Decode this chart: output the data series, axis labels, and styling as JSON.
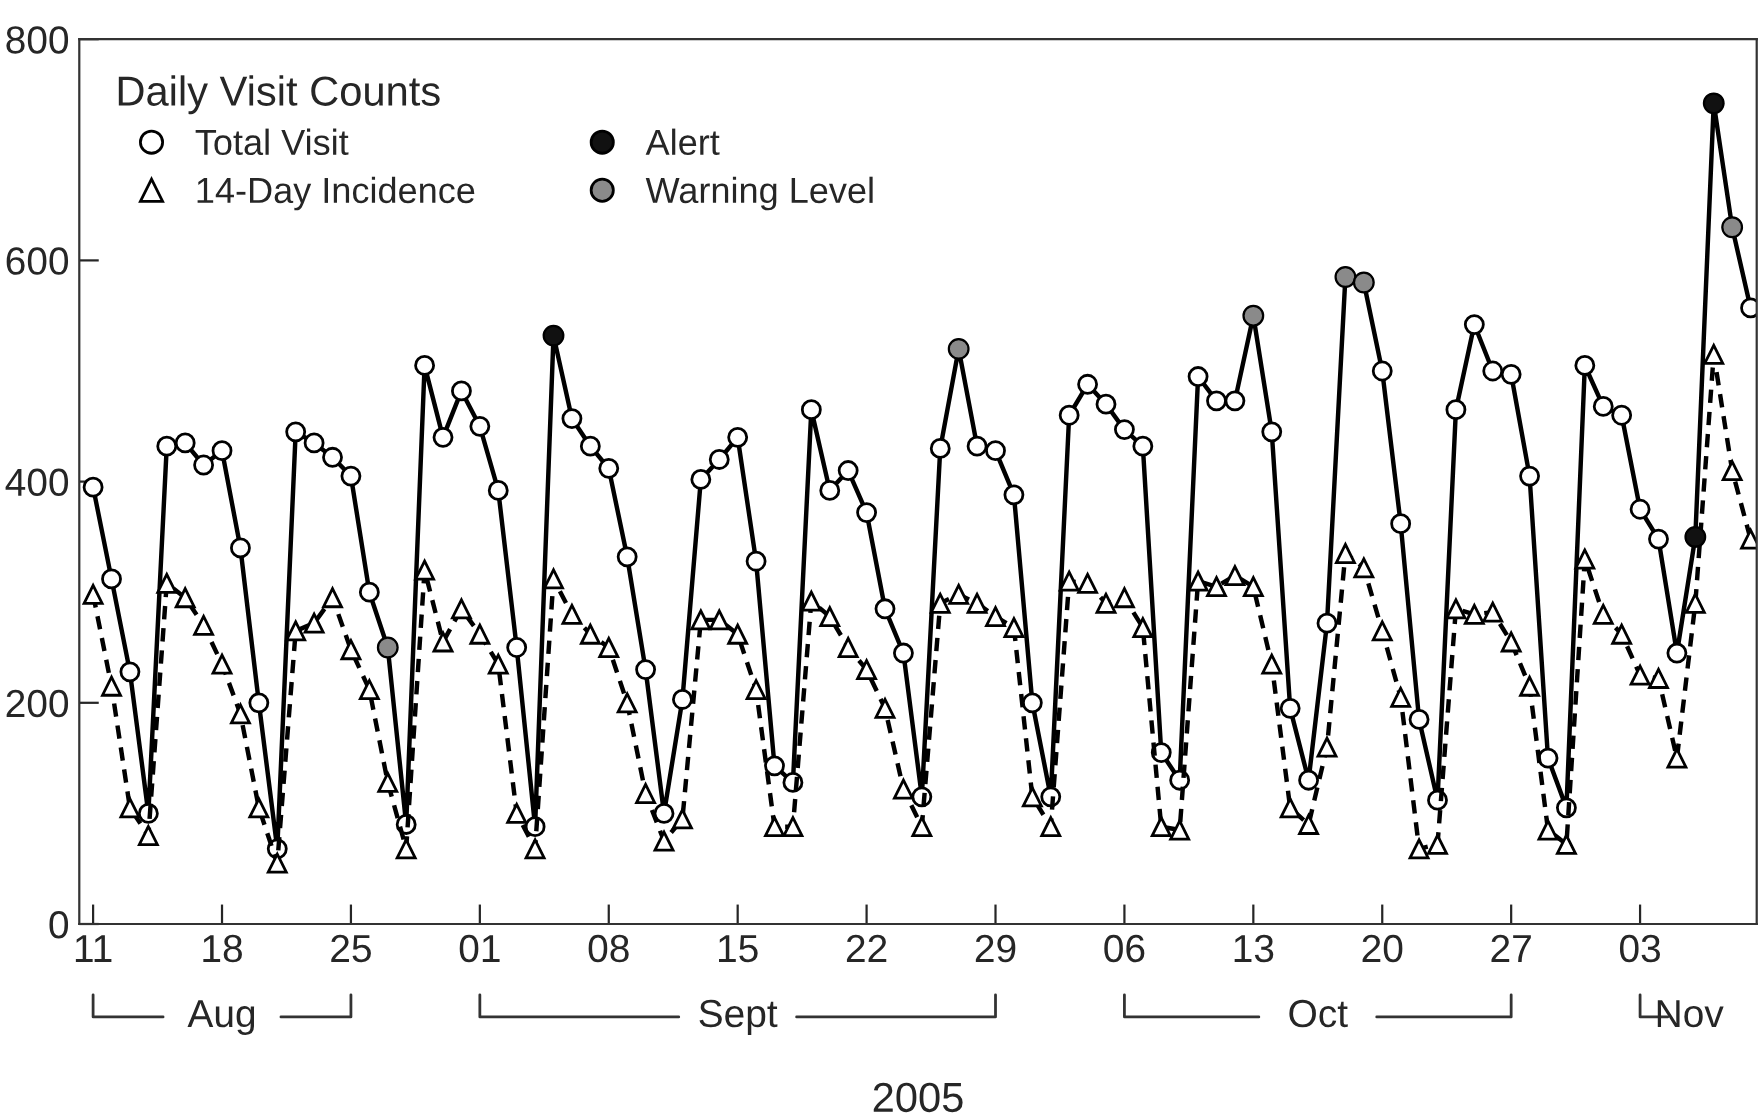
{
  "chart_data": {
    "type": "line",
    "xlabel": "2005",
    "legend_title": "Daily Visit Counts",
    "legend": "top left",
    "grid": false,
    "x": [
      "2005-08-11",
      "2005-08-12",
      "2005-08-13",
      "2005-08-14",
      "2005-08-15",
      "2005-08-16",
      "2005-08-17",
      "2005-08-18",
      "2005-08-19",
      "2005-08-20",
      "2005-08-21",
      "2005-08-22",
      "2005-08-23",
      "2005-08-24",
      "2005-08-25",
      "2005-08-26",
      "2005-08-27",
      "2005-08-28",
      "2005-08-29",
      "2005-08-30",
      "2005-08-31",
      "2005-09-01",
      "2005-09-02",
      "2005-09-03",
      "2005-09-04",
      "2005-09-05",
      "2005-09-06",
      "2005-09-07",
      "2005-09-08",
      "2005-09-09",
      "2005-09-10",
      "2005-09-11",
      "2005-09-12",
      "2005-09-13",
      "2005-09-14",
      "2005-09-15",
      "2005-09-16",
      "2005-09-17",
      "2005-09-18",
      "2005-09-19",
      "2005-09-20",
      "2005-09-21",
      "2005-09-22",
      "2005-09-23",
      "2005-09-24",
      "2005-09-25",
      "2005-09-26",
      "2005-09-27",
      "2005-09-28",
      "2005-09-29",
      "2005-09-30",
      "2005-10-01",
      "2005-10-02",
      "2005-10-03",
      "2005-10-04",
      "2005-10-05",
      "2005-10-06",
      "2005-10-07",
      "2005-10-08",
      "2005-10-09",
      "2005-10-10",
      "2005-10-11",
      "2005-10-12",
      "2005-10-13",
      "2005-10-14",
      "2005-10-15",
      "2005-10-16",
      "2005-10-17",
      "2005-10-18",
      "2005-10-19",
      "2005-10-20",
      "2005-10-21",
      "2005-10-22",
      "2005-10-23",
      "2005-10-24",
      "2005-10-25",
      "2005-10-26",
      "2005-10-27",
      "2005-10-28",
      "2005-10-29",
      "2005-10-30",
      "2005-10-31",
      "2005-11-01",
      "2005-11-02",
      "2005-11-03",
      "2005-11-04",
      "2005-11-05",
      "2005-11-06",
      "2005-11-07",
      "2005-11-08",
      "2005-11-09"
    ],
    "series": [
      {
        "name": "Total Visit",
        "color": "#000000",
        "marker": "circle",
        "line_style": "solid",
        "values": [
          395,
          312,
          228,
          100,
          432,
          435,
          415,
          428,
          340,
          200,
          68,
          445,
          435,
          422,
          405,
          300,
          250,
          90,
          505,
          440,
          482,
          450,
          392,
          250,
          88,
          532,
          457,
          432,
          412,
          332,
          230,
          100,
          203,
          402,
          420,
          440,
          328,
          143,
          128,
          465,
          392,
          410,
          372,
          285,
          245,
          115,
          430,
          520,
          432,
          428,
          388,
          200,
          115,
          460,
          488,
          470,
          447,
          432,
          155,
          130,
          495,
          473,
          473,
          550,
          445,
          195,
          130,
          272,
          585,
          580,
          500,
          362,
          185,
          112,
          465,
          542,
          500,
          497,
          405,
          150,
          105,
          505,
          468,
          460,
          375,
          348,
          245,
          350,
          742,
          630,
          557
        ]
      },
      {
        "name": "14-Day Incidence",
        "color": "#000000",
        "marker": "triangle",
        "line_style": "dashed",
        "values": [
          298,
          215,
          105,
          80,
          308,
          295,
          270,
          235,
          190,
          105,
          55,
          265,
          272,
          295,
          248,
          212,
          128,
          68,
          320,
          255,
          285,
          262,
          235,
          100,
          68,
          312,
          280,
          262,
          250,
          200,
          118,
          75,
          95,
          275,
          275,
          262,
          212,
          88,
          88,
          292,
          278,
          250,
          230,
          195,
          122,
          88,
          290,
          298,
          290,
          278,
          268,
          115,
          88,
          310,
          308,
          290,
          295,
          268,
          88,
          85,
          310,
          305,
          315,
          305,
          235,
          105,
          90,
          160,
          335,
          322,
          265,
          205,
          68,
          72,
          285,
          280,
          282,
          255,
          215,
          85,
          72,
          330,
          280,
          262,
          225,
          222,
          150,
          290,
          515,
          410,
          348
        ]
      },
      {
        "name": "Alert",
        "type": "scatter",
        "color": "#111111",
        "marker": "circle",
        "x": [
          "2005-09-05",
          "2005-11-06",
          "2005-11-07"
        ],
        "values": [
          532,
          350,
          742
        ]
      },
      {
        "name": "Warning Level",
        "type": "scatter",
        "color": "#8a8a8a",
        "marker": "circle",
        "x": [
          "2005-08-27",
          "2005-09-27",
          "2005-10-13",
          "2005-10-18",
          "2005-10-19",
          "2005-11-08"
        ],
        "values": [
          250,
          520,
          550,
          585,
          580,
          630
        ]
      }
    ],
    "xlim": [
      "2005-08-10T06:00",
      "2005-11-09T08:00"
    ],
    "xticks": [
      {
        "value": "2005-08-11",
        "label": "11"
      },
      {
        "value": "2005-08-18",
        "label": "18"
      },
      {
        "value": "2005-08-25",
        "label": "25"
      },
      {
        "value": "2005-09-01",
        "label": "01"
      },
      {
        "value": "2005-09-08",
        "label": "08"
      },
      {
        "value": "2005-09-15",
        "label": "15"
      },
      {
        "value": "2005-09-22",
        "label": "22"
      },
      {
        "value": "2005-09-29",
        "label": "29"
      },
      {
        "value": "2005-10-06",
        "label": "06"
      },
      {
        "value": "2005-10-13",
        "label": "13"
      },
      {
        "value": "2005-10-20",
        "label": "20"
      },
      {
        "value": "2005-10-27",
        "label": "27"
      },
      {
        "value": "2005-11-03",
        "label": "03"
      }
    ],
    "ylim": [
      0,
      800
    ],
    "yticks": [
      0,
      200,
      400,
      600,
      800
    ],
    "annotations": [
      "Aug",
      "Sept",
      "Oct",
      "Nov"
    ]
  }
}
